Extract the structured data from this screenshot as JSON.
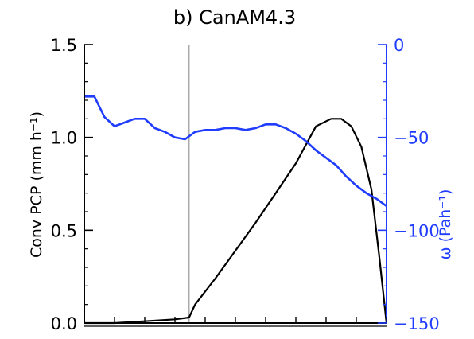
{
  "chart_data": {
    "type": "line",
    "title": "b) CanAM4.3",
    "ylabel_left": "Conv PCP (mm h⁻¹)",
    "ylabel_right": "ω (Pah⁻¹)",
    "xlabel": "",
    "xlim": [
      0,
      30
    ],
    "ylim_left": [
      0,
      1.5
    ],
    "ylim_right": [
      -150,
      0
    ],
    "yticks_left": [
      "0.0",
      "0.5",
      "1.0",
      "1.5"
    ],
    "yticks_right": [
      "−150",
      "−100",
      "−50",
      "0"
    ],
    "vline_x": 10.4,
    "vline_color": "#aaaaaa",
    "series": [
      {
        "axis": "left",
        "color": "#000000",
        "x": [
          0,
          3,
          6,
          9,
          10.4,
          11,
          13,
          15,
          17,
          19,
          21,
          23,
          24.5,
          25.5,
          26.5,
          27.5,
          28.5,
          29.3,
          30
        ],
        "y": [
          0.0,
          0.0,
          0.01,
          0.02,
          0.03,
          0.1,
          0.24,
          0.39,
          0.54,
          0.7,
          0.86,
          1.06,
          1.1,
          1.1,
          1.06,
          0.95,
          0.72,
          0.35,
          0.0
        ]
      },
      {
        "axis": "right",
        "color": "#1f3cff",
        "x": [
          0,
          1,
          2,
          3,
          4,
          5,
          6,
          7,
          8,
          9,
          10,
          11,
          12,
          13,
          14,
          15,
          16,
          17,
          18,
          19,
          20,
          21,
          22,
          23,
          24,
          25,
          26,
          27,
          28,
          29,
          30
        ],
        "y": [
          -28,
          -28,
          -39,
          -44,
          -42,
          -40,
          -40,
          -45,
          -47,
          -50,
          -51,
          -47,
          -46,
          -46,
          -45,
          -45,
          -46,
          -45,
          -43,
          -43,
          -45,
          -48,
          -52,
          -57,
          -61,
          -65,
          -71,
          -76,
          -80,
          -83,
          -87
        ]
      }
    ]
  }
}
